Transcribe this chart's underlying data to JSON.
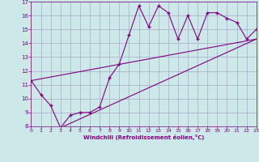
{
  "xlabel": "Windchill (Refroidissement éolien,°C)",
  "bg_color": "#cce8e8",
  "line_color": "#800080",
  "grid_color": "#aaaacc",
  "xmin": 0,
  "xmax": 23,
  "ymin": 8,
  "ymax": 17,
  "xticks": [
    0,
    1,
    2,
    3,
    4,
    5,
    6,
    7,
    8,
    9,
    10,
    11,
    12,
    13,
    14,
    15,
    16,
    17,
    18,
    19,
    20,
    21,
    22,
    23
  ],
  "yticks": [
    8,
    9,
    10,
    11,
    12,
    13,
    14,
    15,
    16,
    17
  ],
  "zigzag_x": [
    0,
    1,
    2,
    3,
    4,
    5,
    6,
    7,
    8,
    9,
    10,
    11,
    12,
    13,
    14,
    15,
    16,
    17,
    18,
    19,
    20,
    21,
    22,
    23
  ],
  "zigzag_y": [
    11.3,
    10.3,
    9.5,
    7.9,
    8.8,
    9.0,
    9.0,
    9.4,
    11.5,
    12.5,
    14.6,
    16.7,
    15.2,
    16.7,
    16.2,
    14.3,
    16.0,
    14.3,
    16.2,
    16.2,
    15.8,
    15.5,
    14.3,
    15.0
  ],
  "upper_line_x": [
    0,
    23
  ],
  "upper_line_y": [
    11.3,
    14.3
  ],
  "lower_line_x": [
    3,
    23
  ],
  "lower_line_y": [
    7.9,
    14.3
  ]
}
